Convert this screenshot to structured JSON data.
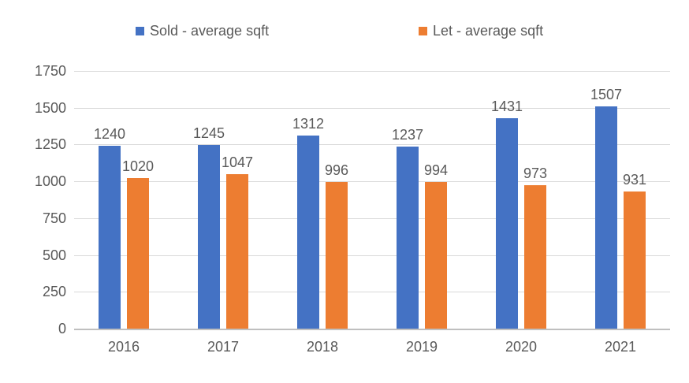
{
  "chart_data": {
    "type": "bar",
    "title": "",
    "xlabel": "",
    "ylabel": "",
    "categories": [
      "2016",
      "2017",
      "2018",
      "2019",
      "2020",
      "2021"
    ],
    "series": [
      {
        "name": "Sold - average sqft",
        "key": "sold",
        "color": "#4472C4",
        "values": [
          1240,
          1245,
          1312,
          1237,
          1431,
          1507
        ]
      },
      {
        "name": "Let - average sqft",
        "key": "let",
        "color": "#ED7D31",
        "values": [
          1020,
          1047,
          996,
          994,
          973,
          931
        ]
      }
    ],
    "ylim": [
      0,
      1750
    ],
    "yticks": [
      0,
      250,
      500,
      750,
      1000,
      1250,
      1500,
      1750
    ],
    "grid": true,
    "legend_position": "top",
    "data_labels": true
  },
  "colors": {
    "text": "#595959",
    "gridline": "#d9d9d9",
    "axis_line": "#bfbfbf",
    "background": "#ffffff"
  }
}
